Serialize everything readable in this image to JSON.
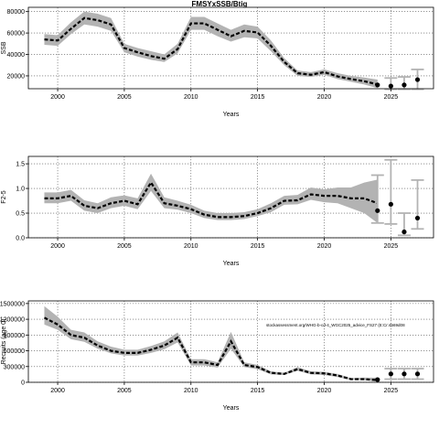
{
  "figure_title": "FMSYxSSB/Btig",
  "chart_data": [
    {
      "type": "line",
      "panel": "ssb",
      "title": "FMSYxSSB/Btig",
      "xlabel": "Years",
      "ylabel": "SSB",
      "xlim": [
        1997.8,
        2028.2
      ],
      "ylim": [
        8000,
        84000
      ],
      "xticks": [
        2000,
        2005,
        2010,
        2015,
        2020,
        2025
      ],
      "yticks": [
        20000,
        40000,
        60000,
        80000
      ],
      "ytick_labels": [
        "20000",
        "40000",
        "60000",
        "80000"
      ],
      "grid": true,
      "years": [
        1999,
        2000,
        2001,
        2002,
        2003,
        2004,
        2005,
        2006,
        2007,
        2008,
        2009,
        2010,
        2011,
        2012,
        2013,
        2014,
        2015,
        2016,
        2017,
        2018,
        2019,
        2020,
        2021,
        2022,
        2023,
        2024
      ],
      "estimate": [
        54000,
        53000,
        64000,
        74000,
        72000,
        68000,
        46000,
        42000,
        38500,
        36000,
        45000,
        69000,
        69000,
        63000,
        57000,
        62000,
        60500,
        48000,
        33000,
        22500,
        21000,
        23500,
        19500,
        17000,
        15000,
        12000
      ],
      "lower": [
        49000,
        48000,
        59000,
        68000,
        66000,
        62000,
        42000,
        38000,
        35000,
        33000,
        41000,
        63000,
        63000,
        57000,
        52000,
        56000,
        55000,
        43000,
        30000,
        20000,
        19000,
        21000,
        17000,
        14500,
        12000,
        8500
      ],
      "upper": [
        59000,
        58000,
        70000,
        80000,
        78000,
        74000,
        50000,
        46000,
        43000,
        40000,
        50000,
        75000,
        75000,
        69000,
        63000,
        68000,
        66000,
        53000,
        36500,
        25000,
        23500,
        26000,
        22500,
        20000,
        18500,
        16500
      ],
      "projection": {
        "years": [
          2024,
          2025,
          2026,
          2027
        ],
        "values": [
          11500,
          10500,
          11500,
          16500
        ],
        "lower": [
          null,
          7500,
          7500,
          7500
        ],
        "upper": [
          null,
          18000,
          19000,
          26000
        ]
      }
    },
    {
      "type": "line",
      "panel": "fishing_mortality",
      "title": "",
      "xlabel": "Years",
      "ylabel": "F2-5",
      "xlim": [
        1997.8,
        2028.2
      ],
      "ylim": [
        0,
        1.65
      ],
      "xticks": [
        2000,
        2005,
        2010,
        2015,
        2020,
        2025
      ],
      "yticks": [
        0,
        0.5,
        1,
        1.5
      ],
      "ytick_labels": [
        "0.0",
        "0.5",
        "1.0",
        "1.5"
      ],
      "grid": true,
      "years": [
        1999,
        2000,
        2001,
        2002,
        2003,
        2004,
        2005,
        2006,
        2007,
        2008,
        2009,
        2010,
        2011,
        2012,
        2013,
        2014,
        2015,
        2016,
        2017,
        2018,
        2019,
        2020,
        2021,
        2022,
        2023,
        2024
      ],
      "estimate": [
        0.8,
        0.8,
        0.85,
        0.65,
        0.6,
        0.7,
        0.75,
        0.68,
        1.12,
        0.7,
        0.65,
        0.58,
        0.47,
        0.42,
        0.42,
        0.44,
        0.5,
        0.6,
        0.75,
        0.76,
        0.88,
        0.85,
        0.85,
        0.8,
        0.8,
        0.7
      ],
      "lower": [
        0.7,
        0.7,
        0.75,
        0.55,
        0.5,
        0.6,
        0.65,
        0.58,
        0.95,
        0.6,
        0.57,
        0.5,
        0.4,
        0.36,
        0.36,
        0.38,
        0.44,
        0.52,
        0.67,
        0.68,
        0.77,
        0.72,
        0.7,
        0.6,
        0.5,
        0.3
      ],
      "upper": [
        0.92,
        0.92,
        0.97,
        0.76,
        0.7,
        0.82,
        0.86,
        0.8,
        1.3,
        0.82,
        0.75,
        0.67,
        0.55,
        0.5,
        0.5,
        0.52,
        0.58,
        0.7,
        0.85,
        0.87,
        1.02,
        0.98,
        1.02,
        1.02,
        1.12,
        1.18
      ],
      "projection": {
        "years": [
          2024,
          2025,
          2026,
          2027
        ],
        "values": [
          0.55,
          0.68,
          0.12,
          0.4
        ],
        "lower": [
          0.3,
          0.28,
          0.05,
          0.18
        ],
        "upper": [
          1.27,
          1.58,
          0.5,
          1.17
        ]
      }
    },
    {
      "type": "line",
      "panel": "recruitment",
      "title": "",
      "xlabel": "Years",
      "ylabel": "Recruits (age 0)",
      "xlim": [
        1997.8,
        2028.2
      ],
      "ylim": [
        0,
        1550000
      ],
      "xticks": [
        2000,
        2005,
        2010,
        2015,
        2020,
        2025
      ],
      "yticks": [
        0,
        300000,
        600000,
        900000,
        1200000,
        1500000
      ],
      "ytick_labels": [
        "0",
        "300000",
        "600000",
        "900000",
        "1200000",
        "1500000"
      ],
      "grid": true,
      "annotation": "stockassessment.org/WHG-b-cd-4_WGC2025_advice_FS27 (E:Cr:4569d08",
      "years": [
        1999,
        2000,
        2001,
        2002,
        2003,
        2004,
        2005,
        2006,
        2007,
        2008,
        2009,
        2010,
        2011,
        2012,
        2013,
        2014,
        2015,
        2016,
        2017,
        2018,
        2019,
        2020,
        2021,
        2022,
        2023,
        2024
      ],
      "estimate": [
        1230000,
        1100000,
        900000,
        850000,
        700000,
        600000,
        560000,
        560000,
        620000,
        700000,
        850000,
        380000,
        380000,
        330000,
        780000,
        330000,
        290000,
        180000,
        160000,
        250000,
        180000,
        170000,
        130000,
        60000,
        60000,
        40000
      ],
      "lower": [
        1100000,
        1000000,
        820000,
        770000,
        640000,
        550000,
        510000,
        510000,
        560000,
        630000,
        760000,
        320000,
        320000,
        280000,
        640000,
        290000,
        250000,
        150000,
        140000,
        220000,
        150000,
        140000,
        100000,
        45000,
        40000,
        20000
      ],
      "upper": [
        1450000,
        1250000,
        1000000,
        950000,
        780000,
        680000,
        620000,
        620000,
        690000,
        780000,
        950000,
        440000,
        440000,
        380000,
        960000,
        380000,
        330000,
        210000,
        180000,
        290000,
        210000,
        200000,
        160000,
        80000,
        90000,
        90000
      ],
      "projection": {
        "years": [
          2024,
          2025,
          2026,
          2027
        ],
        "values": [
          50000,
          160000,
          160000,
          160000
        ],
        "lower": [
          null,
          60000,
          60000,
          60000
        ],
        "upper": [
          null,
          260000,
          260000,
          260000
        ]
      }
    }
  ]
}
